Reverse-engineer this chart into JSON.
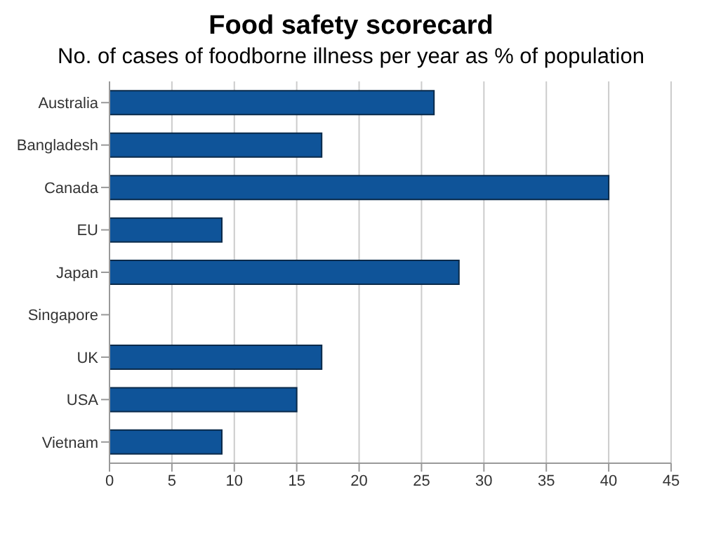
{
  "chart_data": {
    "type": "bar",
    "orientation": "horizontal",
    "title": "Food safety scorecard",
    "subtitle": "No. of cases of foodborne illness per year as % of population",
    "categories": [
      "Australia",
      "Bangladesh",
      "Canada",
      "EU",
      "Japan",
      "Singapore",
      "UK",
      "USA",
      "Vietnam"
    ],
    "values": [
      26,
      17,
      40,
      9,
      28,
      null,
      17,
      15,
      9
    ],
    "color": "#0f5499",
    "xlim": [
      0,
      45
    ],
    "xticks": [
      0,
      5,
      10,
      15,
      20,
      25,
      30,
      35,
      40,
      45
    ],
    "grid": "x"
  }
}
